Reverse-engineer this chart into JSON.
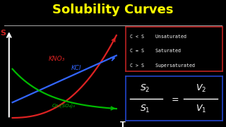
{
  "title": "Solubility Curves",
  "title_color": "#FFFF00",
  "bg_color": "#000000",
  "axis_color": "#FFFFFF",
  "curve_kno3_color": "#DD2222",
  "curve_kcl_color": "#3366FF",
  "curve_ce2so4_color": "#00BB00",
  "label_kno3": "KNO₃",
  "label_kcl": "KCl",
  "label_ce2so4": "Ce₂(SO₄)₃",
  "label_s": "S",
  "label_t": "T",
  "box1_text": [
    "C < S    Unsaturated",
    "C = S    Saturated",
    "C > S    Supersaturated"
  ],
  "box1_color": "#BB2222",
  "box2_color": "#2244CC",
  "text_color": "#FFFFFF",
  "divider_color": "#AAAAAA"
}
